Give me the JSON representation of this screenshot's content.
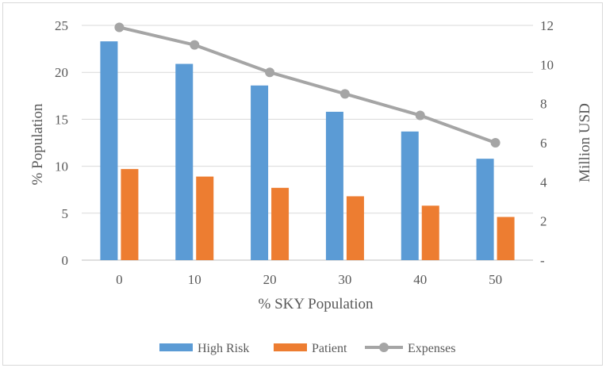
{
  "chart_data": {
    "type": "bar",
    "categories": [
      "0",
      "10",
      "20",
      "30",
      "40",
      "50"
    ],
    "xlabel": "% SKY Population",
    "ylabel": "% Population",
    "y2label": "Million USD",
    "ylim": [
      0,
      25
    ],
    "y2lim": [
      0,
      12
    ],
    "yticks": [
      0,
      5,
      10,
      15,
      20,
      25
    ],
    "y2ticks": [
      "-",
      "2",
      "4",
      "6",
      "8",
      "10",
      "12"
    ],
    "grid": true,
    "legend_position": "bottom",
    "series": [
      {
        "name": "High Risk",
        "type": "bar",
        "axis": "left",
        "color": "#5B9BD5",
        "values": [
          23.3,
          20.9,
          18.6,
          15.8,
          13.7,
          10.8
        ]
      },
      {
        "name": "Patient",
        "type": "bar",
        "axis": "left",
        "color": "#ED7D31",
        "values": [
          9.7,
          8.9,
          7.7,
          6.8,
          5.8,
          4.6
        ]
      },
      {
        "name": "Expenses",
        "type": "line",
        "axis": "right",
        "color": "#A5A5A5",
        "values": [
          11.9,
          11.0,
          9.6,
          8.5,
          7.4,
          6.0
        ]
      }
    ]
  }
}
